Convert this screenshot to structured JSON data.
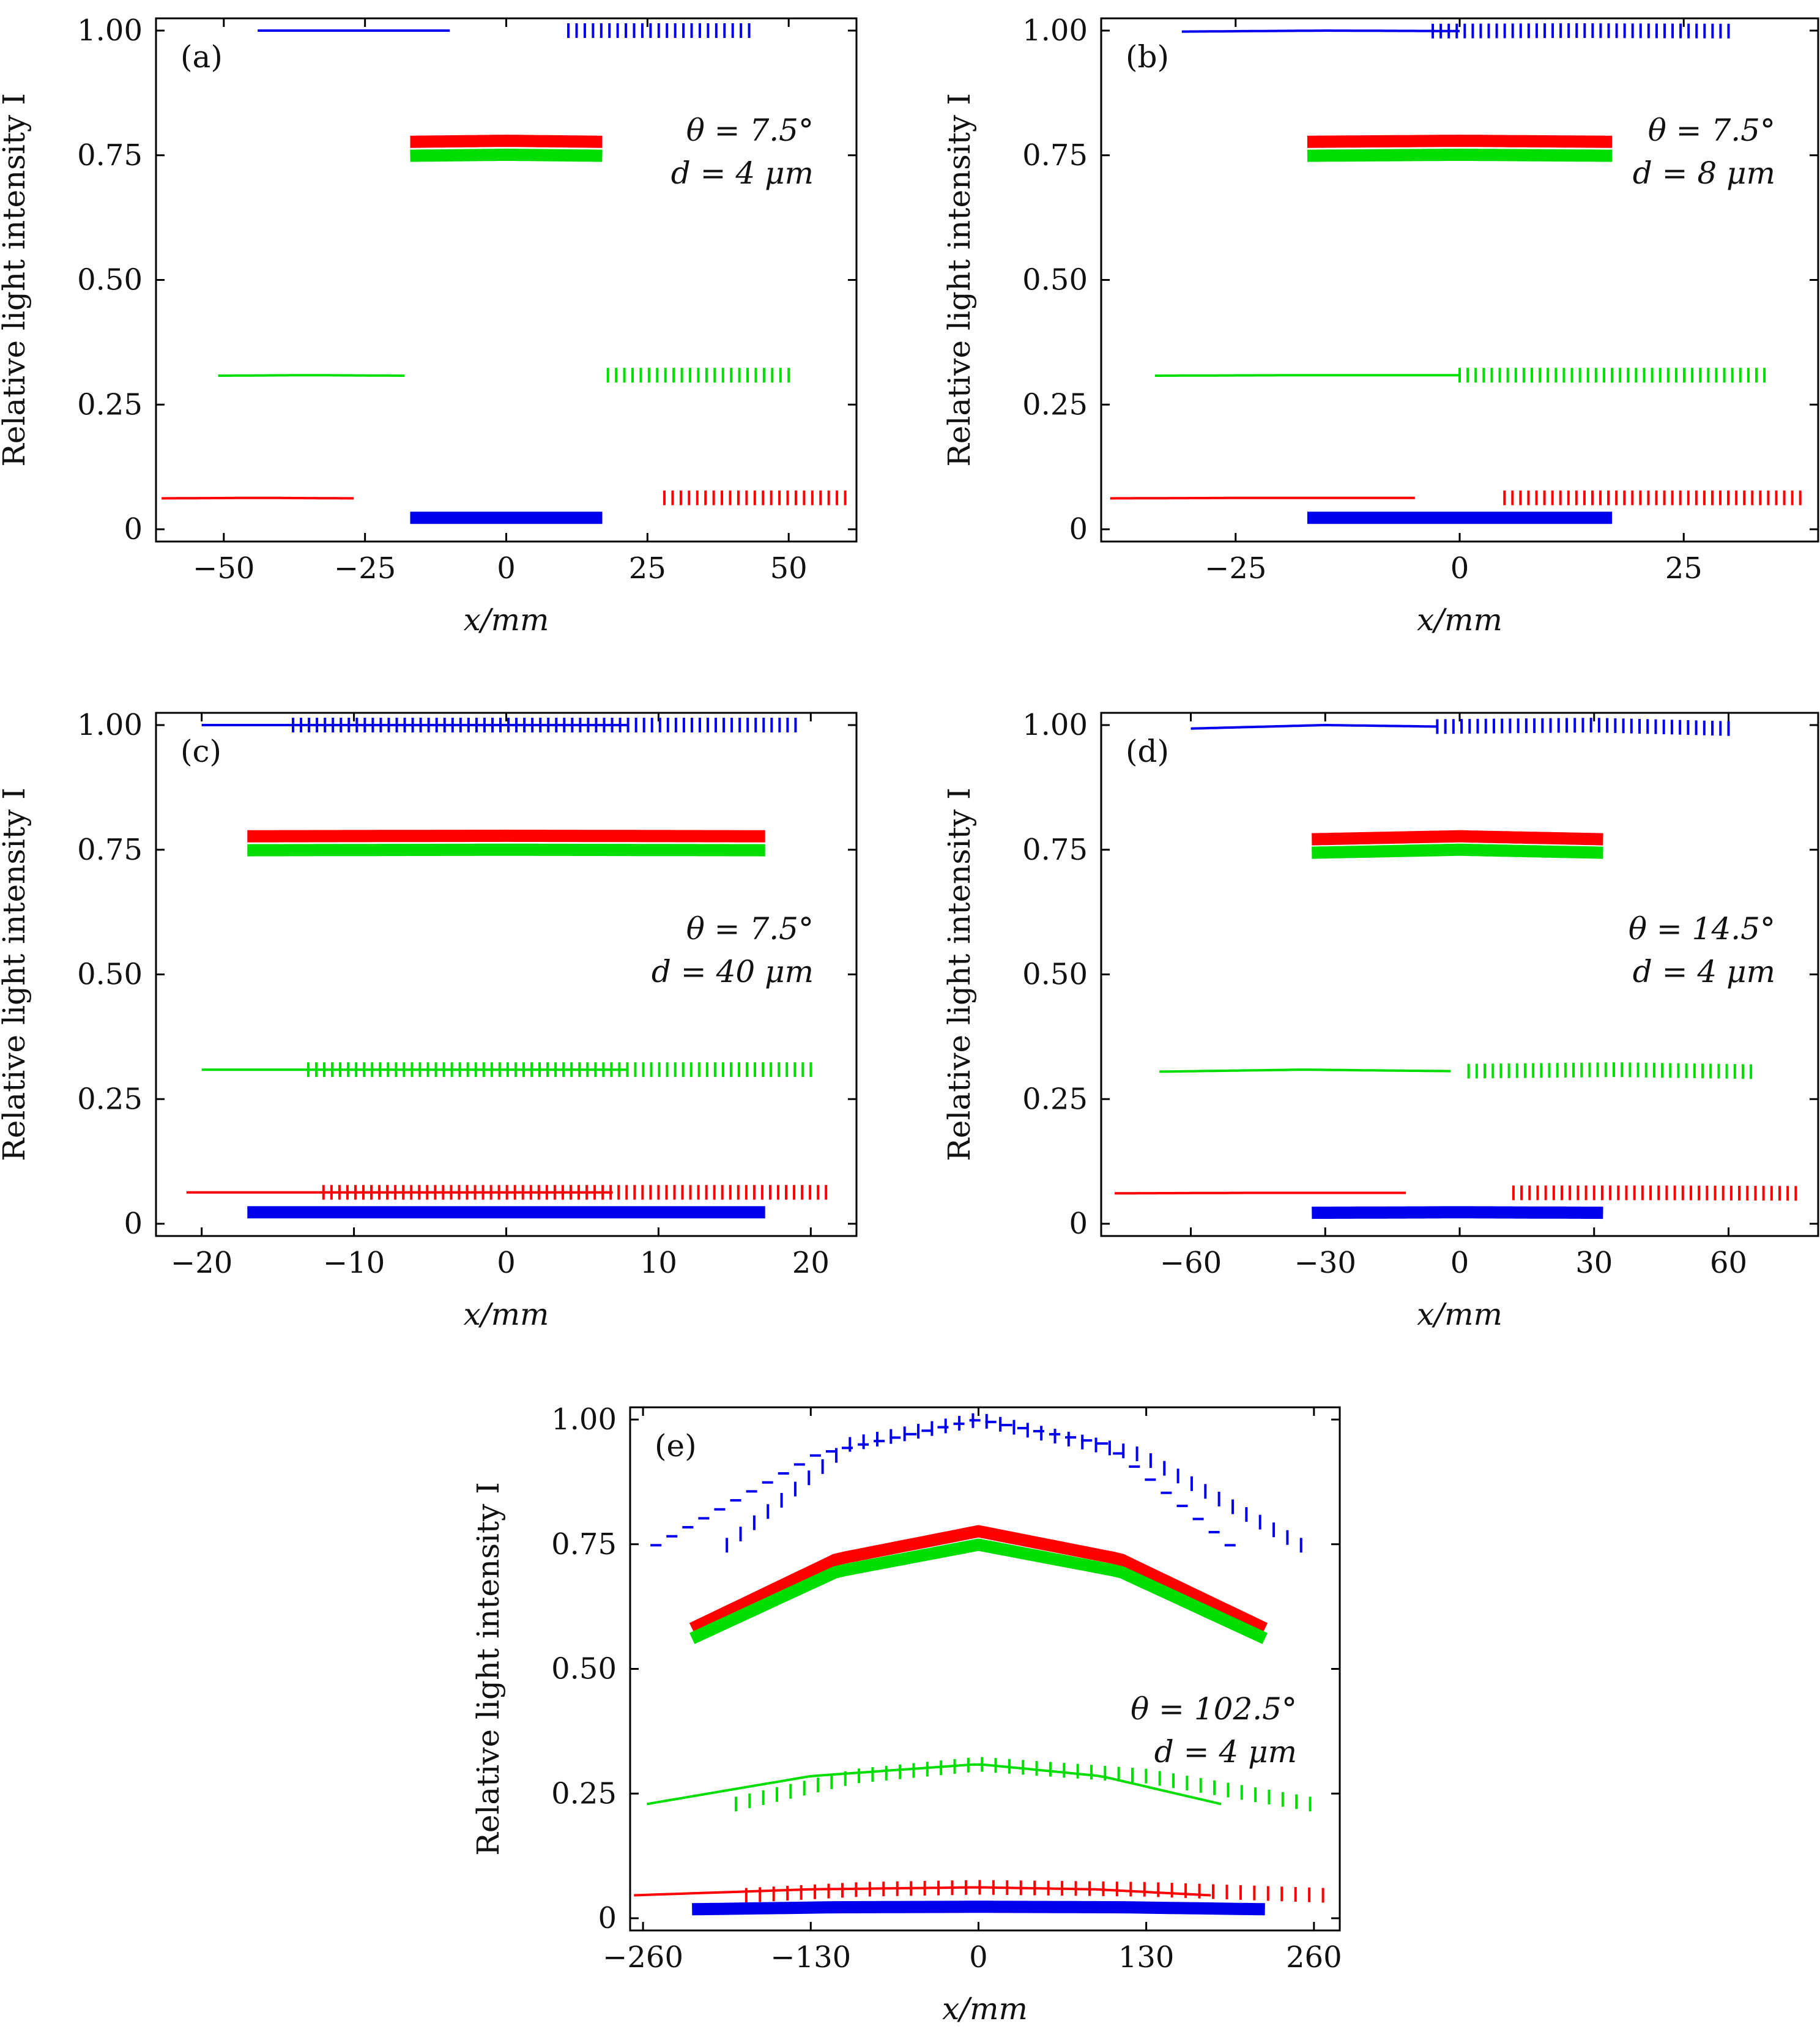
{
  "chart_data": [
    {
      "type": "line",
      "panel_label": "(a)",
      "xlabel": "x/mm",
      "ylabel": "Relative light intensity I",
      "xlim": [
        -62,
        62
      ],
      "ylim": [
        0,
        1.0
      ],
      "xticks": [
        -50,
        -25,
        0,
        25,
        50
      ],
      "xtick_labels": [
        "−50",
        "−25",
        "0",
        "25",
        "50"
      ],
      "yticks": [
        0,
        0.25,
        0.5,
        0.75,
        1.0
      ],
      "ytick_labels": [
        "0",
        "0.25",
        "0.50",
        "0.75",
        "1.00"
      ],
      "annotation": [
        "θ = 7.5°",
        "d = 4 μm"
      ],
      "series": [
        {
          "color": "#0000ee",
          "style": "solid",
          "x": [
            -44,
            -27,
            -10
          ],
          "y": [
            1.0,
            1.0,
            1.0
          ]
        },
        {
          "color": "#0000ee",
          "style": "vdash",
          "x": [
            11,
            27,
            43
          ],
          "y": [
            1.0,
            1.0,
            1.0
          ]
        },
        {
          "color": "#ff0000",
          "style": "thick",
          "x": [
            -17,
            0,
            17
          ],
          "y": [
            0.777,
            0.779,
            0.777
          ]
        },
        {
          "color": "#00dd00",
          "style": "thick",
          "x": [
            -17,
            0,
            17
          ],
          "y": [
            0.749,
            0.751,
            0.749
          ]
        },
        {
          "color": "#00dd00",
          "style": "solid",
          "x": [
            -51,
            -35,
            -18
          ],
          "y": [
            0.308,
            0.309,
            0.308
          ]
        },
        {
          "color": "#00dd00",
          "style": "vdash",
          "x": [
            18,
            34,
            50
          ],
          "y": [
            0.309,
            0.309,
            0.309
          ]
        },
        {
          "color": "#ff0000",
          "style": "solid",
          "x": [
            -61,
            -44,
            -27
          ],
          "y": [
            0.062,
            0.063,
            0.062
          ]
        },
        {
          "color": "#ff0000",
          "style": "vdash",
          "x": [
            28,
            44,
            60
          ],
          "y": [
            0.063,
            0.063,
            0.063
          ]
        },
        {
          "color": "#0000ee",
          "style": "thick",
          "x": [
            -17,
            0,
            17
          ],
          "y": [
            0.023,
            0.023,
            0.023
          ]
        }
      ]
    },
    {
      "type": "line",
      "panel_label": "(b)",
      "xlabel": "x/mm",
      "ylabel": "Relative light intensity I",
      "xlim": [
        -40,
        40
      ],
      "ylim": [
        0,
        1.0
      ],
      "xticks": [
        -25,
        0,
        25
      ],
      "xtick_labels": [
        "−25",
        "0",
        "25"
      ],
      "yticks": [
        0,
        0.25,
        0.5,
        0.75,
        1.0
      ],
      "ytick_labels": [
        "0",
        "0.25",
        "0.50",
        "0.75",
        "1.00"
      ],
      "annotation": [
        "θ = 7.5°",
        "d = 8 μm"
      ],
      "series": [
        {
          "color": "#0000ee",
          "style": "solid",
          "x": [
            -31,
            -15,
            0
          ],
          "y": [
            0.998,
            1.0,
            0.999
          ]
        },
        {
          "color": "#0000ee",
          "style": "vdash",
          "x": [
            -3,
            13,
            30
          ],
          "y": [
            0.999,
            1.0,
            0.999
          ]
        },
        {
          "color": "#ff0000",
          "style": "thick",
          "x": [
            -17,
            0,
            17
          ],
          "y": [
            0.777,
            0.779,
            0.777
          ]
        },
        {
          "color": "#00dd00",
          "style": "thick",
          "x": [
            -17,
            0,
            17
          ],
          "y": [
            0.749,
            0.751,
            0.749
          ]
        },
        {
          "color": "#00dd00",
          "style": "solid",
          "x": [
            -34,
            -17,
            0
          ],
          "y": [
            0.308,
            0.309,
            0.309
          ]
        },
        {
          "color": "#00dd00",
          "style": "vdash",
          "x": [
            0,
            17,
            34
          ],
          "y": [
            0.309,
            0.309,
            0.309
          ]
        },
        {
          "color": "#ff0000",
          "style": "solid",
          "x": [
            -39,
            -22,
            -5
          ],
          "y": [
            0.062,
            0.063,
            0.063
          ]
        },
        {
          "color": "#ff0000",
          "style": "vdash",
          "x": [
            5,
            22,
            38
          ],
          "y": [
            0.063,
            0.063,
            0.063
          ]
        },
        {
          "color": "#0000ee",
          "style": "thick",
          "x": [
            -17,
            0,
            17
          ],
          "y": [
            0.023,
            0.023,
            0.023
          ]
        }
      ]
    },
    {
      "type": "line",
      "panel_label": "(c)",
      "xlabel": "x/mm",
      "ylabel": "Relative light intensity I",
      "xlim": [
        -23,
        23
      ],
      "ylim": [
        0,
        1.0
      ],
      "xticks": [
        -20,
        -10,
        0,
        10,
        20
      ],
      "xtick_labels": [
        "−20",
        "−10",
        "0",
        "10",
        "20"
      ],
      "yticks": [
        0,
        0.25,
        0.5,
        0.75,
        1.0
      ],
      "ytick_labels": [
        "0",
        "0.25",
        "0.50",
        "0.75",
        "1.00"
      ],
      "annotation": [
        "θ = 7.5°",
        "d = 40 μm"
      ],
      "series": [
        {
          "color": "#0000ee",
          "style": "solid",
          "x": [
            -20,
            -6,
            8
          ],
          "y": [
            1.0,
            1.0,
            1.0
          ]
        },
        {
          "color": "#0000ee",
          "style": "vdash",
          "x": [
            -14,
            3,
            19
          ],
          "y": [
            1.0,
            1.0,
            1.0
          ]
        },
        {
          "color": "#ff0000",
          "style": "thick",
          "x": [
            -17,
            0,
            17
          ],
          "y": [
            0.777,
            0.778,
            0.777
          ]
        },
        {
          "color": "#00dd00",
          "style": "thick",
          "x": [
            -17,
            0,
            17
          ],
          "y": [
            0.749,
            0.75,
            0.749
          ]
        },
        {
          "color": "#00dd00",
          "style": "solid",
          "x": [
            -20,
            -6,
            8
          ],
          "y": [
            0.309,
            0.309,
            0.309
          ]
        },
        {
          "color": "#00dd00",
          "style": "vdash",
          "x": [
            -13,
            3,
            20
          ],
          "y": [
            0.309,
            0.309,
            0.309
          ]
        },
        {
          "color": "#ff0000",
          "style": "solid",
          "x": [
            -21,
            -7,
            7
          ],
          "y": [
            0.063,
            0.063,
            0.063
          ]
        },
        {
          "color": "#ff0000",
          "style": "vdash",
          "x": [
            -12,
            4,
            21
          ],
          "y": [
            0.063,
            0.063,
            0.063
          ]
        },
        {
          "color": "#0000ee",
          "style": "thick",
          "x": [
            -17,
            0,
            17
          ],
          "y": [
            0.023,
            0.023,
            0.023
          ]
        }
      ]
    },
    {
      "type": "line",
      "panel_label": "(d)",
      "xlabel": "x/mm",
      "ylabel": "Relative light intensity I",
      "xlim": [
        -80,
        80
      ],
      "ylim": [
        0,
        1.0
      ],
      "xticks": [
        -60,
        -30,
        0,
        30,
        60
      ],
      "xtick_labels": [
        "−60",
        "−30",
        "0",
        "30",
        "60"
      ],
      "yticks": [
        0,
        0.25,
        0.5,
        0.75,
        1.0
      ],
      "ytick_labels": [
        "0",
        "0.25",
        "0.50",
        "0.75",
        "1.00"
      ],
      "annotation": [
        "θ = 14.5°",
        "d = 4 μm"
      ],
      "series": [
        {
          "color": "#0000ee",
          "style": "solid",
          "x": [
            -60,
            -30,
            -5
          ],
          "y": [
            0.993,
            1.0,
            0.997
          ]
        },
        {
          "color": "#0000ee",
          "style": "vdash",
          "x": [
            -5,
            30,
            60
          ],
          "y": [
            0.997,
            1.0,
            0.993
          ]
        },
        {
          "color": "#ff0000",
          "style": "thick",
          "x": [
            -33,
            0,
            32
          ],
          "y": [
            0.771,
            0.777,
            0.771
          ]
        },
        {
          "color": "#00dd00",
          "style": "thick",
          "x": [
            -33,
            0,
            32
          ],
          "y": [
            0.744,
            0.75,
            0.744
          ]
        },
        {
          "color": "#00dd00",
          "style": "solid",
          "x": [
            -67,
            -35,
            -2
          ],
          "y": [
            0.305,
            0.309,
            0.306
          ]
        },
        {
          "color": "#00dd00",
          "style": "vdash",
          "x": [
            2,
            35,
            65
          ],
          "y": [
            0.306,
            0.309,
            0.305
          ]
        },
        {
          "color": "#ff0000",
          "style": "solid",
          "x": [
            -77,
            -45,
            -12
          ],
          "y": [
            0.061,
            0.062,
            0.062
          ]
        },
        {
          "color": "#ff0000",
          "style": "vdash",
          "x": [
            12,
            45,
            75
          ],
          "y": [
            0.062,
            0.062,
            0.061
          ]
        },
        {
          "color": "#0000ee",
          "style": "thick",
          "x": [
            -33,
            0,
            32
          ],
          "y": [
            0.022,
            0.023,
            0.022
          ]
        }
      ]
    },
    {
      "type": "line",
      "panel_label": "(e)",
      "xlabel": "x/mm",
      "ylabel": "Relative light intensity I",
      "xlim": [
        -270,
        280
      ],
      "ylim": [
        0,
        1.0
      ],
      "xticks": [
        -260,
        -130,
        0,
        130,
        260
      ],
      "xtick_labels": [
        "−260",
        "−130",
        "0",
        "130",
        "260"
      ],
      "yticks": [
        0,
        0.25,
        0.5,
        0.75,
        1.0
      ],
      "ytick_labels": [
        "0",
        "0.25",
        "0.50",
        "0.75",
        "1.00"
      ],
      "annotation": [
        "θ = 102.5°",
        "d = 4 μm"
      ],
      "series": [
        {
          "color": "#0000ee",
          "style": "hdash",
          "x": [
            -250,
            -125,
            0,
            100,
            195
          ],
          "y": [
            0.748,
            0.93,
            1.0,
            0.95,
            0.748
          ]
        },
        {
          "color": "#0000ee",
          "style": "vdash",
          "x": [
            -195,
            -100,
            0,
            125,
            250
          ],
          "y": [
            0.748,
            0.95,
            1.0,
            0.93,
            0.748
          ]
        },
        {
          "color": "#ff0000",
          "style": "thick",
          "x": [
            -222,
            -110,
            0,
            110,
            222
          ],
          "y": [
            0.581,
            0.72,
            0.776,
            0.72,
            0.581
          ]
        },
        {
          "color": "#00dd00",
          "style": "thick",
          "x": [
            -222,
            -110,
            0,
            110,
            222
          ],
          "y": [
            0.561,
            0.695,
            0.749,
            0.695,
            0.561
          ]
        },
        {
          "color": "#00dd00",
          "style": "solid",
          "x": [
            -257,
            -130,
            0,
            95,
            188
          ],
          "y": [
            0.229,
            0.285,
            0.309,
            0.285,
            0.229
          ]
        },
        {
          "color": "#00dd00",
          "style": "vdash",
          "x": [
            -188,
            -95,
            0,
            130,
            257
          ],
          "y": [
            0.229,
            0.285,
            0.309,
            0.285,
            0.229
          ]
        },
        {
          "color": "#ff0000",
          "style": "solid",
          "x": [
            -267,
            -130,
            0,
            90,
            180
          ],
          "y": [
            0.046,
            0.058,
            0.062,
            0.058,
            0.046
          ]
        },
        {
          "color": "#ff0000",
          "style": "vdash",
          "x": [
            -180,
            -90,
            0,
            130,
            267
          ],
          "y": [
            0.046,
            0.058,
            0.062,
            0.058,
            0.046
          ]
        },
        {
          "color": "#0000ee",
          "style": "thick",
          "x": [
            -222,
            -110,
            0,
            110,
            222
          ],
          "y": [
            0.018,
            0.022,
            0.023,
            0.022,
            0.018
          ]
        }
      ]
    }
  ]
}
